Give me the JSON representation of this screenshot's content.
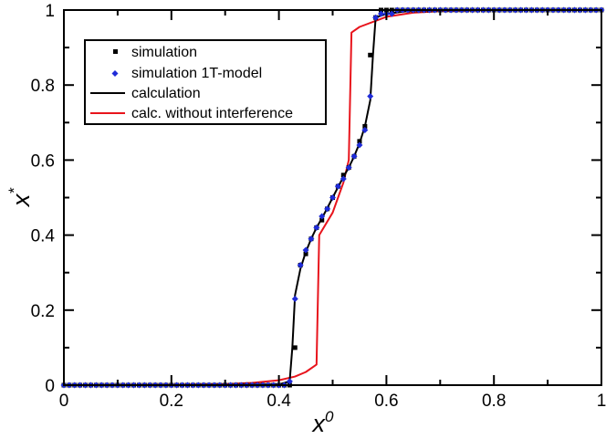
{
  "chart_data": {
    "type": "line",
    "title": "",
    "xlabel": "x",
    "xlabel_superscript": "0",
    "ylabel": "x",
    "ylabel_superscript": "*",
    "xlim": [
      0,
      1
    ],
    "ylim": [
      0,
      1
    ],
    "xticks": [
      0,
      0.2,
      0.4,
      0.6,
      0.8,
      1
    ],
    "yticks": [
      0,
      0.2,
      0.4,
      0.6,
      0.8,
      1
    ],
    "xtick_labels": [
      "0",
      "0.2",
      "0.4",
      "0.6",
      "0.8",
      "1"
    ],
    "ytick_labels": [
      "0",
      "0.2",
      "0.4",
      "0.6",
      "0.8",
      "1"
    ],
    "grid": false,
    "legend_position": "top-left",
    "series": [
      {
        "name": "simulation",
        "kind": "scatter",
        "marker": "square",
        "color": "#000000",
        "points": [
          [
            0,
            0
          ],
          [
            0.01,
            0
          ],
          [
            0.02,
            0
          ],
          [
            0.03,
            0
          ],
          [
            0.04,
            0
          ],
          [
            0.05,
            0
          ],
          [
            0.06,
            0
          ],
          [
            0.07,
            0
          ],
          [
            0.08,
            0
          ],
          [
            0.09,
            0
          ],
          [
            0.1,
            0
          ],
          [
            0.11,
            0
          ],
          [
            0.12,
            0
          ],
          [
            0.13,
            0
          ],
          [
            0.14,
            0
          ],
          [
            0.15,
            0
          ],
          [
            0.16,
            0
          ],
          [
            0.17,
            0
          ],
          [
            0.18,
            0
          ],
          [
            0.19,
            0
          ],
          [
            0.2,
            0
          ],
          [
            0.21,
            0
          ],
          [
            0.22,
            0
          ],
          [
            0.23,
            0
          ],
          [
            0.24,
            0
          ],
          [
            0.25,
            0
          ],
          [
            0.26,
            0
          ],
          [
            0.27,
            0
          ],
          [
            0.28,
            0
          ],
          [
            0.29,
            0
          ],
          [
            0.3,
            0
          ],
          [
            0.31,
            0
          ],
          [
            0.32,
            0
          ],
          [
            0.33,
            0
          ],
          [
            0.34,
            0
          ],
          [
            0.35,
            0
          ],
          [
            0.36,
            0
          ],
          [
            0.37,
            0
          ],
          [
            0.38,
            0
          ],
          [
            0.39,
            0
          ],
          [
            0.4,
            0
          ],
          [
            0.41,
            0
          ],
          [
            0.42,
            0
          ],
          [
            0.43,
            0.1
          ],
          [
            0.44,
            0.32
          ],
          [
            0.45,
            0.35
          ],
          [
            0.46,
            0.39
          ],
          [
            0.47,
            0.42
          ],
          [
            0.48,
            0.44
          ],
          [
            0.49,
            0.47
          ],
          [
            0.5,
            0.5
          ],
          [
            0.51,
            0.53
          ],
          [
            0.52,
            0.56
          ],
          [
            0.53,
            0.58
          ],
          [
            0.54,
            0.61
          ],
          [
            0.55,
            0.65
          ],
          [
            0.56,
            0.69
          ],
          [
            0.57,
            0.88
          ],
          [
            0.58,
            0.98
          ],
          [
            0.59,
            1
          ],
          [
            0.6,
            1
          ],
          [
            0.61,
            1
          ],
          [
            0.62,
            1
          ],
          [
            0.63,
            1
          ],
          [
            0.64,
            1
          ],
          [
            0.65,
            1
          ],
          [
            0.66,
            1
          ],
          [
            0.67,
            1
          ],
          [
            0.68,
            1
          ],
          [
            0.69,
            1
          ],
          [
            0.7,
            1
          ],
          [
            0.71,
            1
          ],
          [
            0.72,
            1
          ],
          [
            0.73,
            1
          ],
          [
            0.74,
            1
          ],
          [
            0.75,
            1
          ],
          [
            0.76,
            1
          ],
          [
            0.77,
            1
          ],
          [
            0.78,
            1
          ],
          [
            0.79,
            1
          ],
          [
            0.8,
            1
          ],
          [
            0.81,
            1
          ],
          [
            0.82,
            1
          ],
          [
            0.83,
            1
          ],
          [
            0.84,
            1
          ],
          [
            0.85,
            1
          ],
          [
            0.86,
            1
          ],
          [
            0.87,
            1
          ],
          [
            0.88,
            1
          ],
          [
            0.89,
            1
          ],
          [
            0.9,
            1
          ],
          [
            0.91,
            1
          ],
          [
            0.92,
            1
          ],
          [
            0.93,
            1
          ],
          [
            0.94,
            1
          ],
          [
            0.95,
            1
          ],
          [
            0.96,
            1
          ],
          [
            0.97,
            1
          ],
          [
            0.98,
            1
          ],
          [
            0.99,
            1
          ],
          [
            1,
            1
          ]
        ]
      },
      {
        "name": "simulation 1T-model",
        "kind": "scatter",
        "marker": "diamond",
        "color": "#1f2bd8",
        "points": [
          [
            0,
            0
          ],
          [
            0.01,
            0
          ],
          [
            0.02,
            0
          ],
          [
            0.03,
            0
          ],
          [
            0.04,
            0
          ],
          [
            0.05,
            0
          ],
          [
            0.06,
            0
          ],
          [
            0.07,
            0
          ],
          [
            0.08,
            0
          ],
          [
            0.09,
            0
          ],
          [
            0.1,
            0
          ],
          [
            0.11,
            0
          ],
          [
            0.12,
            0
          ],
          [
            0.13,
            0
          ],
          [
            0.14,
            0
          ],
          [
            0.15,
            0
          ],
          [
            0.16,
            0
          ],
          [
            0.17,
            0
          ],
          [
            0.18,
            0
          ],
          [
            0.19,
            0
          ],
          [
            0.2,
            0
          ],
          [
            0.21,
            0
          ],
          [
            0.22,
            0
          ],
          [
            0.23,
            0
          ],
          [
            0.24,
            0
          ],
          [
            0.25,
            0
          ],
          [
            0.26,
            0
          ],
          [
            0.27,
            0
          ],
          [
            0.28,
            0
          ],
          [
            0.29,
            0
          ],
          [
            0.3,
            0
          ],
          [
            0.31,
            0
          ],
          [
            0.32,
            0
          ],
          [
            0.33,
            0
          ],
          [
            0.34,
            0
          ],
          [
            0.35,
            0
          ],
          [
            0.36,
            0
          ],
          [
            0.37,
            0
          ],
          [
            0.38,
            0
          ],
          [
            0.39,
            0
          ],
          [
            0.4,
            0
          ],
          [
            0.41,
            0
          ],
          [
            0.42,
            0.01
          ],
          [
            0.43,
            0.23
          ],
          [
            0.44,
            0.32
          ],
          [
            0.45,
            0.36
          ],
          [
            0.46,
            0.39
          ],
          [
            0.47,
            0.42
          ],
          [
            0.48,
            0.45
          ],
          [
            0.49,
            0.47
          ],
          [
            0.5,
            0.5
          ],
          [
            0.51,
            0.53
          ],
          [
            0.52,
            0.55
          ],
          [
            0.53,
            0.58
          ],
          [
            0.54,
            0.61
          ],
          [
            0.55,
            0.64
          ],
          [
            0.56,
            0.68
          ],
          [
            0.57,
            0.77
          ],
          [
            0.58,
            0.98
          ],
          [
            0.59,
            0.99
          ],
          [
            0.6,
            0.99
          ],
          [
            0.61,
            0.99
          ],
          [
            0.62,
            1
          ],
          [
            0.63,
            1
          ],
          [
            0.64,
            1
          ],
          [
            0.65,
            1
          ],
          [
            0.66,
            1
          ],
          [
            0.67,
            1
          ],
          [
            0.68,
            1
          ],
          [
            0.69,
            1
          ],
          [
            0.7,
            1
          ],
          [
            0.71,
            1
          ],
          [
            0.72,
            1
          ],
          [
            0.73,
            1
          ],
          [
            0.74,
            1
          ],
          [
            0.75,
            1
          ],
          [
            0.76,
            1
          ],
          [
            0.77,
            1
          ],
          [
            0.78,
            1
          ],
          [
            0.79,
            1
          ],
          [
            0.8,
            1
          ],
          [
            0.81,
            1
          ],
          [
            0.82,
            1
          ],
          [
            0.83,
            1
          ],
          [
            0.84,
            1
          ],
          [
            0.85,
            1
          ],
          [
            0.86,
            1
          ],
          [
            0.87,
            1
          ],
          [
            0.88,
            1
          ],
          [
            0.89,
            1
          ],
          [
            0.9,
            1
          ],
          [
            0.91,
            1
          ],
          [
            0.92,
            1
          ],
          [
            0.93,
            1
          ],
          [
            0.94,
            1
          ],
          [
            0.95,
            1
          ],
          [
            0.96,
            1
          ],
          [
            0.97,
            1
          ],
          [
            0.98,
            1
          ],
          [
            0.99,
            1
          ],
          [
            1,
            1
          ]
        ]
      },
      {
        "name": "calculation",
        "kind": "line",
        "color": "#000000",
        "points": [
          [
            0,
            0
          ],
          [
            0.3,
            0
          ],
          [
            0.35,
            0.001
          ],
          [
            0.4,
            0.002
          ],
          [
            0.42,
            0.01
          ],
          [
            0.425,
            0.1
          ],
          [
            0.43,
            0.24
          ],
          [
            0.44,
            0.31
          ],
          [
            0.45,
            0.355
          ],
          [
            0.46,
            0.39
          ],
          [
            0.47,
            0.42
          ],
          [
            0.48,
            0.445
          ],
          [
            0.49,
            0.472
          ],
          [
            0.5,
            0.5
          ],
          [
            0.51,
            0.528
          ],
          [
            0.52,
            0.555
          ],
          [
            0.53,
            0.58
          ],
          [
            0.54,
            0.61
          ],
          [
            0.55,
            0.645
          ],
          [
            0.56,
            0.69
          ],
          [
            0.57,
            0.76
          ],
          [
            0.575,
            0.88
          ],
          [
            0.58,
            0.98
          ],
          [
            0.6,
            0.99
          ],
          [
            0.65,
            0.999
          ],
          [
            0.7,
            1
          ],
          [
            1,
            1
          ]
        ]
      },
      {
        "name": "calc. without interference",
        "kind": "line",
        "color": "#e8141c",
        "points": [
          [
            0,
            0
          ],
          [
            0.2,
            0.001
          ],
          [
            0.3,
            0.003
          ],
          [
            0.35,
            0.006
          ],
          [
            0.4,
            0.013
          ],
          [
            0.43,
            0.023
          ],
          [
            0.45,
            0.035
          ],
          [
            0.47,
            0.055
          ],
          [
            0.475,
            0.4
          ],
          [
            0.5,
            0.46
          ],
          [
            0.51,
            0.5
          ],
          [
            0.52,
            0.54
          ],
          [
            0.53,
            0.6
          ],
          [
            0.535,
            0.94
          ],
          [
            0.55,
            0.955
          ],
          [
            0.6,
            0.982
          ],
          [
            0.65,
            0.993
          ],
          [
            0.7,
            0.997
          ],
          [
            0.8,
            1
          ],
          [
            1,
            1
          ]
        ]
      }
    ],
    "legend": [
      {
        "label": "simulation",
        "symbol": "square",
        "color": "#000000"
      },
      {
        "label": "simulation 1T-model",
        "symbol": "diamond",
        "color": "#1f2bd8"
      },
      {
        "label": "calculation",
        "symbol": "line",
        "color": "#000000"
      },
      {
        "label": "calc. without interference",
        "symbol": "line",
        "color": "#e8141c"
      }
    ]
  }
}
